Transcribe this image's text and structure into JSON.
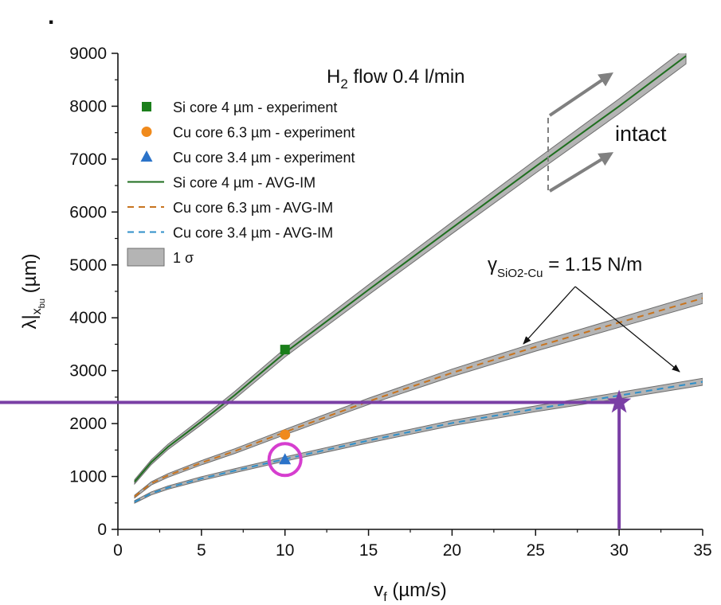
{
  "chart_data": {
    "type": "line",
    "xlabel": {
      "main": "v",
      "sub": "f",
      "unit": " (µm/s)"
    },
    "ylabel": {
      "main": "λ|",
      "sub": "x",
      "subsub": "bu",
      "unit": " (µm)"
    },
    "xlim": [
      0,
      35
    ],
    "ylim": [
      0,
      9000
    ],
    "x_ticks": [
      0,
      5,
      10,
      15,
      20,
      25,
      30,
      35
    ],
    "y_ticks": [
      0,
      1000,
      2000,
      3000,
      4000,
      5000,
      6000,
      7000,
      8000,
      9000
    ],
    "grid": false,
    "legend_position": "upper-left",
    "series": [
      {
        "name": "Si core 4 µm - experiment",
        "kind": "marker",
        "marker": "square",
        "color": "#1b7f1b",
        "points": [
          {
            "x": 10,
            "y": 3400
          }
        ]
      },
      {
        "name": "Cu core 6.3 µm - experiment",
        "kind": "marker",
        "marker": "circle",
        "color": "#f08a1c",
        "points": [
          {
            "x": 10,
            "y": 1790
          }
        ]
      },
      {
        "name": "Cu core 3.4 µm - experiment",
        "kind": "marker",
        "marker": "triangle",
        "color": "#2b73c9",
        "points": [
          {
            "x": 10,
            "y": 1320
          }
        ]
      },
      {
        "name": "Si core 4 µm - AVG-IM",
        "kind": "line",
        "dash": "solid",
        "color": "#1f6e1f",
        "x": [
          1,
          2,
          3,
          4,
          5,
          7,
          10,
          15,
          20,
          25,
          30,
          34
        ],
        "y": [
          900,
          1270,
          1560,
          1800,
          2040,
          2540,
          3340,
          4530,
          5700,
          6860,
          8000,
          8950
        ]
      },
      {
        "name": "Cu core 6.3 µm - AVG-IM",
        "kind": "line",
        "dash": "dashed",
        "color": "#c8741f",
        "x": [
          1,
          2,
          3,
          5,
          7,
          10,
          15,
          20,
          25,
          30,
          35
        ],
        "y": [
          620,
          870,
          1020,
          1260,
          1480,
          1840,
          2420,
          2960,
          3450,
          3910,
          4370
        ]
      },
      {
        "name": "Cu core 3.4 µm - AVG-IM",
        "kind": "line",
        "dash": "dashed",
        "color": "#2f8fc9",
        "x": [
          1,
          2,
          3,
          5,
          7,
          10,
          15,
          20,
          25,
          30,
          35
        ],
        "y": [
          520,
          680,
          790,
          960,
          1110,
          1330,
          1680,
          2010,
          2280,
          2530,
          2790
        ]
      },
      {
        "name": "1 σ",
        "kind": "band",
        "color": "#b4b4b4"
      }
    ],
    "bands": [
      {
        "for": "Si core 4 µm - AVG-IM",
        "half_width": [
          40,
          45,
          50,
          55,
          60,
          70,
          80,
          95,
          110,
          125,
          140,
          150
        ]
      },
      {
        "for": "Cu core 6.3 µm - AVG-IM",
        "half_width": [
          25,
          30,
          35,
          40,
          45,
          50,
          60,
          70,
          80,
          90,
          100
        ]
      },
      {
        "for": "Cu core 3.4 µm - AVG-IM",
        "half_width": [
          25,
          28,
          30,
          35,
          38,
          40,
          45,
          50,
          55,
          60,
          65
        ]
      }
    ],
    "annotations": {
      "flow": {
        "main": "H",
        "sub": "2",
        "rest": " flow 0.4 l/min"
      },
      "state": "intact",
      "gamma": {
        "main": "γ",
        "sub": "SiO2-Cu",
        "rest": " = 1.15 N/m"
      },
      "dot": ".",
      "highlight_point": {
        "x": 10,
        "y": 1320
      },
      "target_point": {
        "x": 30,
        "y": 2400
      }
    },
    "colors": {
      "target": "#7a3fa5",
      "highlight": "#d63ecf",
      "arrow": "#808080",
      "axis": "#111111"
    }
  }
}
